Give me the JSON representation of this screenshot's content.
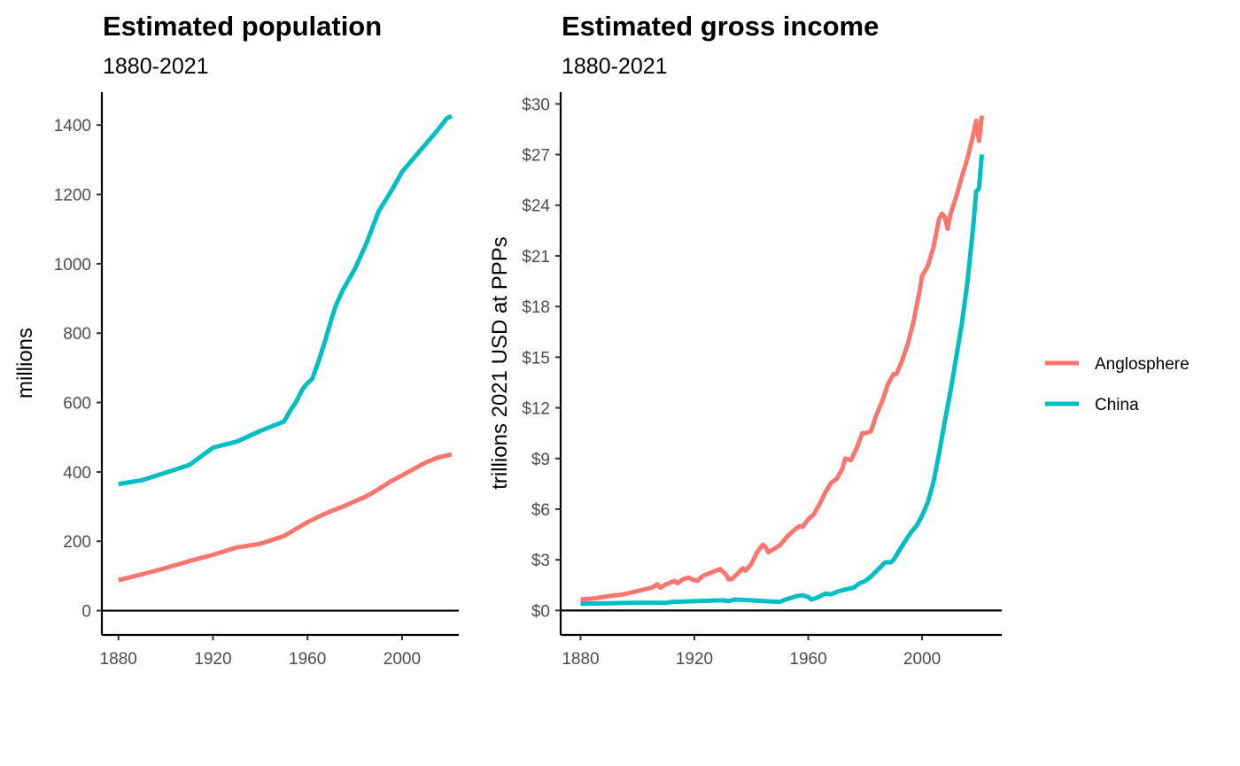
{
  "chart_data": [
    {
      "type": "line",
      "title": "Estimated population",
      "subtitle": "1880-2021",
      "xlabel": "",
      "ylabel": "millions",
      "xlim": [
        1873,
        2024
      ],
      "ylim": [
        -70,
        1495
      ],
      "x_ticks": [
        1880,
        1920,
        1960,
        2000
      ],
      "y_ticks": [
        0,
        200,
        400,
        600,
        800,
        1000,
        1200,
        1400
      ],
      "y_tick_labels": [
        "0",
        "200",
        "400",
        "600",
        "800",
        "1000",
        "1200",
        "1400"
      ],
      "hline": 0,
      "grid": false,
      "series": [
        {
          "name": "Anglosphere",
          "color": "#F8766D",
          "points": [
            [
              1880,
              88
            ],
            [
              1890,
              105
            ],
            [
              1900,
              123
            ],
            [
              1910,
              143
            ],
            [
              1920,
              161
            ],
            [
              1930,
              182
            ],
            [
              1940,
              193
            ],
            [
              1950,
              215
            ],
            [
              1955,
              235
            ],
            [
              1960,
              255
            ],
            [
              1965,
              272
            ],
            [
              1970,
              287
            ],
            [
              1975,
              300
            ],
            [
              1980,
              315
            ],
            [
              1985,
              330
            ],
            [
              1990,
              350
            ],
            [
              1995,
              372
            ],
            [
              2000,
              390
            ],
            [
              2005,
              409
            ],
            [
              2010,
              427
            ],
            [
              2015,
              441
            ],
            [
              2020,
              449
            ],
            [
              2021,
              450
            ]
          ]
        },
        {
          "name": "China",
          "color": "#00BFC4",
          "points": [
            [
              1880,
              365
            ],
            [
              1890,
              376
            ],
            [
              1900,
              398
            ],
            [
              1910,
              420
            ],
            [
              1920,
              470
            ],
            [
              1930,
              487
            ],
            [
              1940,
              518
            ],
            [
              1950,
              545
            ],
            [
              1953,
              580
            ],
            [
              1955,
              600
            ],
            [
              1958,
              640
            ],
            [
              1960,
              656
            ],
            [
              1962,
              668
            ],
            [
              1965,
              725
            ],
            [
              1968,
              790
            ],
            [
              1970,
              838
            ],
            [
              1972,
              880
            ],
            [
              1975,
              925
            ],
            [
              1980,
              985
            ],
            [
              1985,
              1060
            ],
            [
              1990,
              1150
            ],
            [
              1995,
              1205
            ],
            [
              2000,
              1265
            ],
            [
              2005,
              1305
            ],
            [
              2010,
              1345
            ],
            [
              2015,
              1385
            ],
            [
              2019,
              1420
            ],
            [
              2021,
              1426
            ]
          ]
        }
      ]
    },
    {
      "type": "line",
      "title": "Estimated gross income",
      "subtitle": "1880-2021",
      "xlabel": "",
      "ylabel": "trillions 2021 USD at PPPs",
      "xlim": [
        1873,
        2028
      ],
      "ylim": [
        -1.45,
        30.7
      ],
      "x_ticks": [
        1880,
        1920,
        1960,
        2000
      ],
      "y_ticks": [
        0,
        3,
        6,
        9,
        12,
        15,
        18,
        21,
        24,
        27,
        30
      ],
      "y_tick_labels": [
        "$0",
        "$3",
        "$6",
        "$9",
        "$12",
        "$15",
        "$18",
        "$21",
        "$24",
        "$27",
        "$30"
      ],
      "hline": 0,
      "grid": false,
      "series": [
        {
          "name": "Anglosphere",
          "color": "#F8766D",
          "points": [
            [
              1880,
              0.65
            ],
            [
              1885,
              0.72
            ],
            [
              1890,
              0.85
            ],
            [
              1895,
              0.95
            ],
            [
              1900,
              1.15
            ],
            [
              1905,
              1.35
            ],
            [
              1907,
              1.55
            ],
            [
              1908,
              1.35
            ],
            [
              1910,
              1.55
            ],
            [
              1913,
              1.75
            ],
            [
              1914,
              1.6
            ],
            [
              1916,
              1.85
            ],
            [
              1918,
              1.95
            ],
            [
              1919,
              1.85
            ],
            [
              1921,
              1.75
            ],
            [
              1923,
              2.05
            ],
            [
              1926,
              2.25
            ],
            [
              1929,
              2.45
            ],
            [
              1931,
              2.15
            ],
            [
              1932,
              1.85
            ],
            [
              1933,
              1.85
            ],
            [
              1935,
              2.15
            ],
            [
              1937,
              2.5
            ],
            [
              1938,
              2.35
            ],
            [
              1940,
              2.75
            ],
            [
              1942,
              3.45
            ],
            [
              1944,
              3.9
            ],
            [
              1945,
              3.75
            ],
            [
              1946,
              3.45
            ],
            [
              1948,
              3.65
            ],
            [
              1950,
              3.85
            ],
            [
              1953,
              4.45
            ],
            [
              1955,
              4.75
            ],
            [
              1957,
              5.0
            ],
            [
              1958,
              4.95
            ],
            [
              1960,
              5.4
            ],
            [
              1962,
              5.7
            ],
            [
              1964,
              6.3
            ],
            [
              1966,
              7.0
            ],
            [
              1968,
              7.55
            ],
            [
              1970,
              7.8
            ],
            [
              1972,
              8.4
            ],
            [
              1973,
              9.0
            ],
            [
              1975,
              8.9
            ],
            [
              1977,
              9.6
            ],
            [
              1979,
              10.5
            ],
            [
              1980,
              10.5
            ],
            [
              1982,
              10.6
            ],
            [
              1984,
              11.6
            ],
            [
              1986,
              12.4
            ],
            [
              1988,
              13.4
            ],
            [
              1990,
              14.0
            ],
            [
              1991,
              14.0
            ],
            [
              1993,
              14.8
            ],
            [
              1995,
              15.8
            ],
            [
              1997,
              17.1
            ],
            [
              1999,
              18.8
            ],
            [
              2000,
              19.8
            ],
            [
              2002,
              20.4
            ],
            [
              2004,
              21.5
            ],
            [
              2006,
              23.2
            ],
            [
              2007,
              23.5
            ],
            [
              2008,
              23.3
            ],
            [
              2009,
              22.6
            ],
            [
              2010,
              23.5
            ],
            [
              2012,
              24.5
            ],
            [
              2014,
              25.7
            ],
            [
              2016,
              26.8
            ],
            [
              2018,
              28.2
            ],
            [
              2019,
              29.0
            ],
            [
              2020,
              27.8
            ],
            [
              2021,
              29.3
            ]
          ]
        },
        {
          "name": "China",
          "color": "#00BFC4",
          "points": [
            [
              1880,
              0.4
            ],
            [
              1890,
              0.43
            ],
            [
              1900,
              0.46
            ],
            [
              1910,
              0.45
            ],
            [
              1912,
              0.5
            ],
            [
              1920,
              0.55
            ],
            [
              1930,
              0.6
            ],
            [
              1932,
              0.55
            ],
            [
              1934,
              0.65
            ],
            [
              1940,
              0.6
            ],
            [
              1945,
              0.55
            ],
            [
              1950,
              0.5
            ],
            [
              1952,
              0.65
            ],
            [
              1954,
              0.75
            ],
            [
              1956,
              0.85
            ],
            [
              1958,
              0.9
            ],
            [
              1960,
              0.8
            ],
            [
              1961,
              0.65
            ],
            [
              1963,
              0.75
            ],
            [
              1966,
              1.0
            ],
            [
              1968,
              0.95
            ],
            [
              1970,
              1.1
            ],
            [
              1972,
              1.2
            ],
            [
              1976,
              1.35
            ],
            [
              1978,
              1.6
            ],
            [
              1980,
              1.75
            ],
            [
              1982,
              2.0
            ],
            [
              1985,
              2.5
            ],
            [
              1987,
              2.85
            ],
            [
              1989,
              2.85
            ],
            [
              1990,
              3.0
            ],
            [
              1992,
              3.55
            ],
            [
              1994,
              4.1
            ],
            [
              1996,
              4.6
            ],
            [
              1998,
              5.0
            ],
            [
              2000,
              5.6
            ],
            [
              2002,
              6.4
            ],
            [
              2004,
              7.6
            ],
            [
              2006,
              9.3
            ],
            [
              2008,
              11.2
            ],
            [
              2010,
              13.0
            ],
            [
              2012,
              15.0
            ],
            [
              2014,
              17.0
            ],
            [
              2016,
              19.5
            ],
            [
              2018,
              22.8
            ],
            [
              2019,
              24.8
            ],
            [
              2020,
              25.0
            ],
            [
              2021,
              27.0
            ]
          ]
        }
      ]
    }
  ],
  "legend": {
    "position": "right",
    "items": [
      {
        "label": "Anglosphere",
        "color": "#F8766D"
      },
      {
        "label": "China",
        "color": "#00BFC4"
      }
    ]
  }
}
